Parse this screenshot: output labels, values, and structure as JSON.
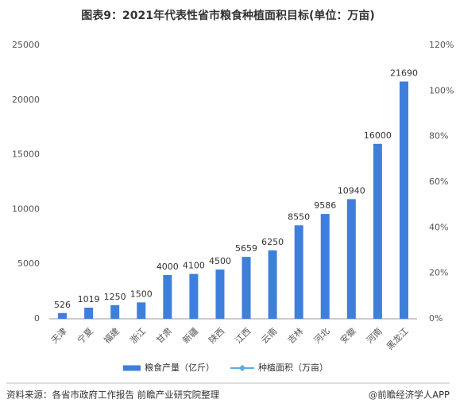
{
  "chart_data": {
    "type": "bar",
    "title": "图表9：2021年代表性省市粮食种植面积目标(单位：万亩)",
    "categories": [
      "天津",
      "宁夏",
      "福建",
      "浙江",
      "甘肃",
      "新疆",
      "陕西",
      "江西",
      "云南",
      "吉林",
      "河北",
      "安徽",
      "河南",
      "黑龙江"
    ],
    "series": [
      {
        "name": "粮食产量（亿斤）",
        "color": "#3f7fdc",
        "values": [
          526,
          1019,
          1250,
          1500,
          4000,
          4100,
          4500,
          5659,
          6250,
          8550,
          9586,
          10940,
          16000,
          21690
        ]
      },
      {
        "name": "种植面积（万亩）",
        "color": "#5aaee6",
        "axis": "y2",
        "values": [
          null,
          null,
          null,
          null,
          null,
          null,
          null,
          null,
          null,
          null,
          null,
          null,
          null,
          null
        ]
      }
    ],
    "ylim": [
      0,
      25000
    ],
    "yticks": [
      0,
      5000,
      10000,
      15000,
      20000,
      25000
    ],
    "y2lim": [
      0,
      120
    ],
    "y2ticks": [
      {
        "value": 0,
        "label": "0%"
      },
      {
        "value": 20,
        "label": "20%"
      },
      {
        "value": 40,
        "label": "40%"
      },
      {
        "value": 60,
        "label": "60%"
      },
      {
        "value": 80,
        "label": "80%"
      },
      {
        "value": 100,
        "label": "100%"
      },
      {
        "value": 120,
        "label": "120%"
      }
    ],
    "grid": false,
    "source": "资料来源：各省市政府工作报告 前瞻产业研究院整理",
    "credit": "@前瞻经济学人APP"
  }
}
